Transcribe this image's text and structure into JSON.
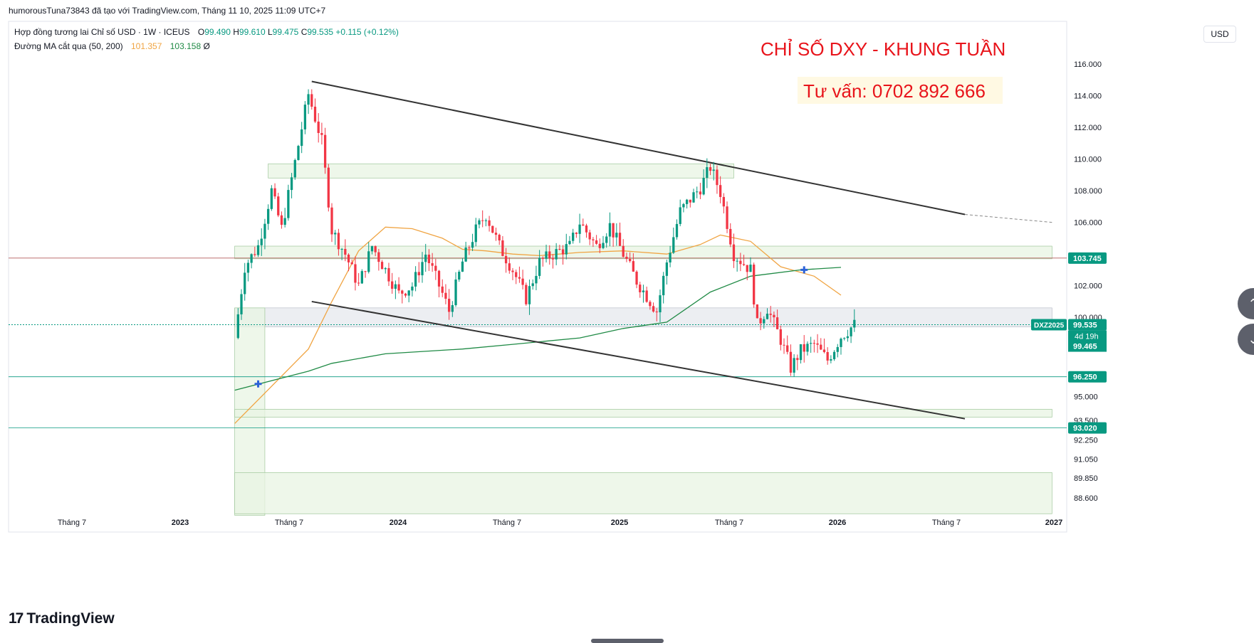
{
  "header": {
    "published_by": "humorousTuna73843 đã tạo với TradingView.com, Tháng 11 10, 2025 11:09 UTC+7"
  },
  "legend": {
    "symbol_line": "Hợp đồng tương lai Chỉ số USD · 1W · ICEUS",
    "open_label": "O",
    "open": "99.490",
    "high_label": "H",
    "high": "99.610",
    "low_label": "L",
    "low": "99.475",
    "close_label": "C",
    "close": "99.535",
    "change": "+0.115 (+0.12%)",
    "ma_label": "Đường MA cắt qua (50, 200)",
    "ma50_value": "101.357",
    "ma200_value": "103.158",
    "ma_suffix": "Ø"
  },
  "currency_button": "USD",
  "annotations": {
    "title": "CHỈ SỐ DXY - KHUNG TUẦN",
    "contact": "Tư vấn: 0702 892 666"
  },
  "brand": {
    "logo_mark": "17",
    "name": "TradingView"
  },
  "colors": {
    "up": "#089981",
    "down": "#f23645",
    "ma50": "#f0a442",
    "ma200": "#1f8a45",
    "trendline": "#333333",
    "zone_green": "#e8f4e3",
    "zone_grey": "#e6e8ee",
    "annotation_red": "#e8141b"
  },
  "chart_data": {
    "type": "candlestick",
    "timeframe": "1W",
    "y_range": [
      87.5,
      118.0
    ],
    "y_ticks": [
      "116.000",
      "114.000",
      "112.000",
      "110.000",
      "108.000",
      "106.000",
      "102.000",
      "100.000",
      "95.000",
      "93.500",
      "92.250",
      "91.050",
      "89.850",
      "88.600"
    ],
    "price_tags": [
      {
        "label": "103.745",
        "value": 103.745
      },
      {
        "label": "96.250",
        "value": 96.25
      },
      {
        "label": "93.020",
        "value": 93.02
      }
    ],
    "current_price": {
      "symbol": "DXZ2025",
      "price": "99.535",
      "countdown": "4d 19h",
      "ma_tag": "99.465",
      "value": 99.535
    },
    "x_ticks": [
      "Tháng 7",
      "2023",
      "Tháng 7",
      "2024",
      "Tháng 7",
      "2025",
      "Tháng 7",
      "2026",
      "Tháng 7",
      "2027"
    ],
    "price_path": [
      [
        "2022-04-25",
        98.7
      ],
      [
        "2022-05-16",
        103.2
      ],
      [
        "2022-06-13",
        104.5
      ],
      [
        "2022-07-11",
        108.0
      ],
      [
        "2022-08-01",
        105.6
      ],
      [
        "2022-08-29",
        109.8
      ],
      [
        "2022-09-26",
        114.1
      ],
      [
        "2022-10-24",
        111.1
      ],
      [
        "2022-11-14",
        105.5
      ],
      [
        "2022-12-12",
        104.0
      ],
      [
        "2023-01-09",
        102.0
      ],
      [
        "2023-02-06",
        104.5
      ],
      [
        "2023-03-06",
        103.0
      ],
      [
        "2023-04-03",
        101.5
      ],
      [
        "2023-05-01",
        102.0
      ],
      [
        "2023-05-29",
        104.0
      ],
      [
        "2023-07-03",
        101.5
      ],
      [
        "2023-07-17",
        100.4
      ],
      [
        "2023-08-14",
        103.5
      ],
      [
        "2023-09-11",
        105.5
      ],
      [
        "2023-10-02",
        106.5
      ],
      [
        "2023-10-30",
        104.5
      ],
      [
        "2023-11-27",
        103.0
      ],
      [
        "2023-12-25",
        101.2
      ],
      [
        "2024-01-22",
        103.5
      ],
      [
        "2024-02-19",
        104.0
      ],
      [
        "2024-03-25",
        104.5
      ],
      [
        "2024-04-15",
        106.0
      ],
      [
        "2024-05-20",
        104.5
      ],
      [
        "2024-06-17",
        105.8
      ],
      [
        "2024-07-15",
        104.0
      ],
      [
        "2024-08-12",
        102.3
      ],
      [
        "2024-09-23",
        100.4
      ],
      [
        "2024-10-14",
        103.5
      ],
      [
        "2024-11-11",
        106.7
      ],
      [
        "2024-12-23",
        108.2
      ],
      [
        "2025-01-13",
        109.5
      ],
      [
        "2025-02-03",
        107.9
      ],
      [
        "2025-03-03",
        104.0
      ],
      [
        "2025-04-07",
        103.0
      ],
      [
        "2025-04-21",
        99.5
      ],
      [
        "2025-05-12",
        100.6
      ],
      [
        "2025-06-09",
        98.6
      ],
      [
        "2025-06-30",
        96.8
      ],
      [
        "2025-07-21",
        97.9
      ],
      [
        "2025-08-18",
        98.3
      ],
      [
        "2025-09-15",
        97.3
      ],
      [
        "2025-10-13",
        98.8
      ],
      [
        "2025-11-10",
        99.535
      ]
    ],
    "ma50_path": [
      [
        "2022-04-25",
        93.3
      ],
      [
        "2022-09-26",
        98.0
      ],
      [
        "2022-11-14",
        101.0
      ],
      [
        "2023-01-09",
        104.2
      ],
      [
        "2023-03-06",
        105.7
      ],
      [
        "2023-05-01",
        105.6
      ],
      [
        "2023-07-03",
        105.0
      ],
      [
        "2023-08-14",
        104.3
      ],
      [
        "2023-10-02",
        104.2
      ],
      [
        "2023-11-27",
        104.0
      ],
      [
        "2024-01-22",
        103.9
      ],
      [
        "2024-04-15",
        104.1
      ],
      [
        "2024-07-15",
        104.2
      ],
      [
        "2024-10-14",
        104.0
      ],
      [
        "2024-12-23",
        104.6
      ],
      [
        "2025-02-03",
        105.2
      ],
      [
        "2025-04-07",
        104.8
      ],
      [
        "2025-06-09",
        103.2
      ],
      [
        "2025-08-18",
        102.6
      ],
      [
        "2025-10-13",
        101.4
      ]
    ],
    "ma200_path": [
      [
        "2022-04-25",
        95.4
      ],
      [
        "2022-09-26",
        96.6
      ],
      [
        "2022-11-14",
        97.1
      ],
      [
        "2023-03-06",
        97.7
      ],
      [
        "2023-08-14",
        98.0
      ],
      [
        "2023-11-27",
        98.3
      ],
      [
        "2024-04-15",
        98.7
      ],
      [
        "2024-07-15",
        99.3
      ],
      [
        "2024-10-14",
        99.7
      ],
      [
        "2025-01-13",
        101.6
      ],
      [
        "2025-04-07",
        102.6
      ],
      [
        "2025-07-21",
        103.0
      ],
      [
        "2025-10-13",
        103.158
      ]
    ],
    "trendlines": [
      {
        "name": "upper",
        "from": [
          "2022-10-03",
          114.9
        ],
        "to": [
          "2026-06-29",
          106.5
        ],
        "extend_to": [
          "2026-12-28",
          106.0
        ]
      },
      {
        "name": "lower",
        "from": [
          "2022-10-03",
          101.0
        ],
        "to": [
          "2026-06-29",
          93.6
        ]
      }
    ],
    "zones": [
      {
        "from": [
          "2022-07-04",
          108.8
        ],
        "to": [
          "2025-03-03",
          109.7
        ],
        "color": "green"
      },
      {
        "from": [
          "2022-04-25",
          103.7
        ],
        "to": [
          "2026-12-28",
          104.5
        ],
        "color": "green"
      },
      {
        "from": [
          "2022-04-25",
          99.4
        ],
        "to": [
          "2026-12-28",
          100.6
        ],
        "color": "grey"
      },
      {
        "from": [
          "2022-04-25",
          87.5
        ],
        "to": [
          "2022-06-27",
          100.6
        ],
        "color": "green"
      },
      {
        "from": [
          "2022-04-25",
          93.7
        ],
        "to": [
          "2026-12-28",
          94.2
        ],
        "color": "green"
      },
      {
        "from": [
          "2022-04-25",
          87.6
        ],
        "to": [
          "2026-12-28",
          90.2
        ],
        "color": "green"
      }
    ],
    "cross_markers": [
      {
        "date": "2022-06-13",
        "value": 95.8
      },
      {
        "date": "2025-07-28",
        "value": 103.0
      }
    ],
    "grid": false
  }
}
